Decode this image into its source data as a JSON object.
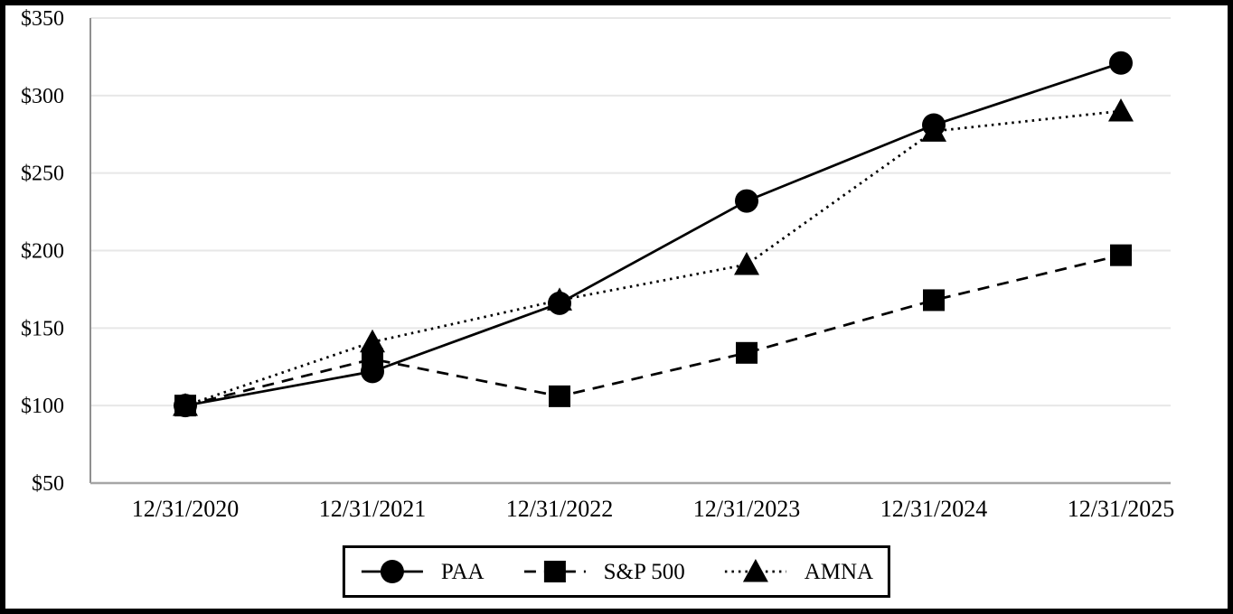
{
  "chart_data": {
    "type": "line",
    "title": "",
    "xlabel": "",
    "ylabel": "",
    "categories": [
      "12/31/2020",
      "12/31/2021",
      "12/31/2022",
      "12/31/2023",
      "12/31/2024",
      "12/31/2025"
    ],
    "series": [
      {
        "name": "PAA",
        "marker": "circle",
        "line_style": "solid",
        "color": "#000000",
        "values": [
          100,
          122,
          166,
          232,
          281,
          321
        ]
      },
      {
        "name": "S&P 500",
        "marker": "square",
        "line_style": "dashed",
        "color": "#000000",
        "values": [
          100,
          130,
          106,
          134,
          168,
          197
        ]
      },
      {
        "name": "AMNA",
        "marker": "triangle",
        "line_style": "dotted",
        "color": "#000000",
        "values": [
          100,
          141,
          168,
          191,
          277,
          290
        ]
      }
    ],
    "y_axis": {
      "min": 50,
      "max": 350,
      "tick_step": 50,
      "tick_labels": [
        "$50",
        "$100",
        "$150",
        "$200",
        "$250",
        "$300",
        "$350"
      ]
    },
    "grid": true,
    "legend_position": "bottom",
    "colors": {
      "series": "#000000",
      "gridline": "#e7e7e7",
      "y_axis_line": "#8f8f8f",
      "x_axis_line": "#a6a6a6",
      "frame": "#000000",
      "background": "#ffffff"
    }
  }
}
